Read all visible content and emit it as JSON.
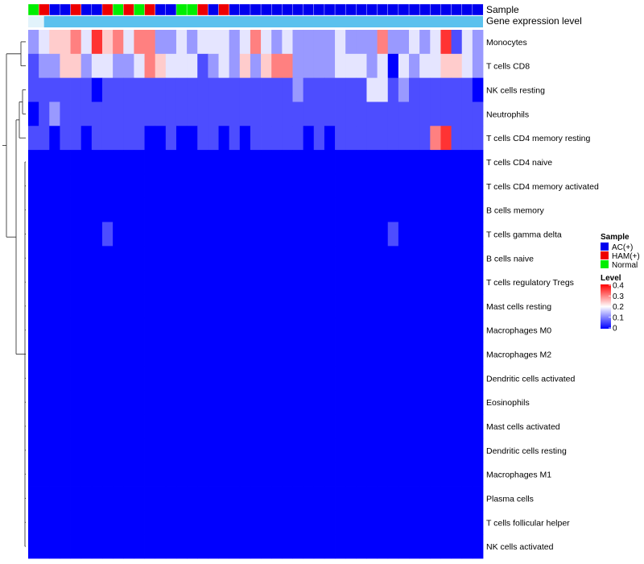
{
  "chart_data": {
    "type": "heatmap",
    "title": "",
    "rows": [
      "Monocytes",
      "T cells CD8",
      "NK cells resting",
      "Neutrophils",
      "T cells CD4 memory resting",
      "T cells CD4 naive",
      "T cells CD4 memory activated",
      "B cells memory",
      "T cells gamma delta",
      "B cells naive",
      "T cells regulatory  Tregs",
      "Mast cells resting",
      "Macrophages M0",
      "Macrophages M2",
      "Dendritic cells activated",
      "Eosinophils",
      "Mast cells activated",
      "Dendritic cells resting",
      "Macrophages M1",
      "Plasma cells",
      "T cells follicular helper",
      "NK cells activated"
    ],
    "column_annotation": {
      "sample_label": "Sample",
      "gene_label": "Gene expression level",
      "sample_codes": "GRBBRBBRGRGRBBGGRBRBBBBBBBBBBBBBBBBBBBBBBBB",
      "gene_value_color": "#5bc1ee",
      "gene_start_color": "#e2f3fb"
    },
    "values": [
      "2344536453552232333235323222232225223236132",
      "1224423322354333123242455222233323032334432",
      "1111110111111111111111111211111133121111110",
      "0121111111111111111111111111111111111111111",
      "1101101111100100110101111101011111111156111",
      "0000000000000000000000000000000000000000000",
      "0000000000000000000000000000000000000000000",
      "0000000000000000000000000000000000000000000",
      "0000000100000000000000000000000000100000000",
      "0000000000000000000000000000000000000000000",
      "0000000000000000000000000000000000000000000",
      "0000000000000000000000000000000000000000000",
      "0000000000000000000000000000000000000000000",
      "0000000000000000000000000000000000000000000",
      "0000000000000000000000000000000000000000000",
      "0000000000000000000000000000000000000000000",
      "0000000000000000000000000000000000000000000",
      "0000000000000000000000000000000000000000000",
      "0000000000000000000000000000000000000000000",
      "0000000000000000000000000000000000000000000",
      "0000000000000000000000000000000000000000000",
      "0000000000000000000000000000000000000000000"
    ],
    "legend": {
      "sample_title": "Sample",
      "sample_items": [
        {
          "label": "AC(+)",
          "color": "#0000ee"
        },
        {
          "label": "HAM(+)",
          "color": "#ee0000"
        },
        {
          "label": "Normal",
          "color": "#00ee00"
        }
      ],
      "level_title": "Level",
      "level_ticks": [
        "0.4",
        "0.3",
        "0.2",
        "0.1",
        "0"
      ],
      "level_range": [
        0,
        0.4
      ]
    },
    "colors": {
      "low": "#0000ff",
      "mid": "#ffffff",
      "high": "#ff0000"
    }
  }
}
